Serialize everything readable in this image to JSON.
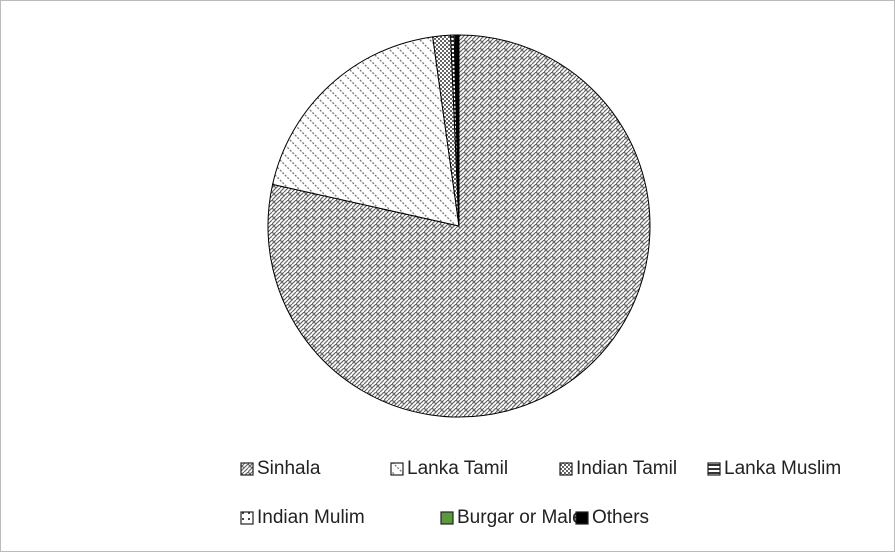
{
  "chart_data": {
    "type": "pie",
    "categories": [
      "Sinhala",
      "Lanka Tamil",
      "Indian Tamil",
      "Lanka Muslim",
      "Indian Mulim",
      "Burgar or Male",
      "Others"
    ],
    "values": [
      78.5,
      19.3,
      1.5,
      0.3,
      0.1,
      0.1,
      0.2
    ],
    "colors": [
      "#555555",
      "#555555",
      "#555555",
      "#333333",
      "#555555",
      "#5b9a3c",
      "#000000"
    ],
    "legend": "bottom"
  }
}
